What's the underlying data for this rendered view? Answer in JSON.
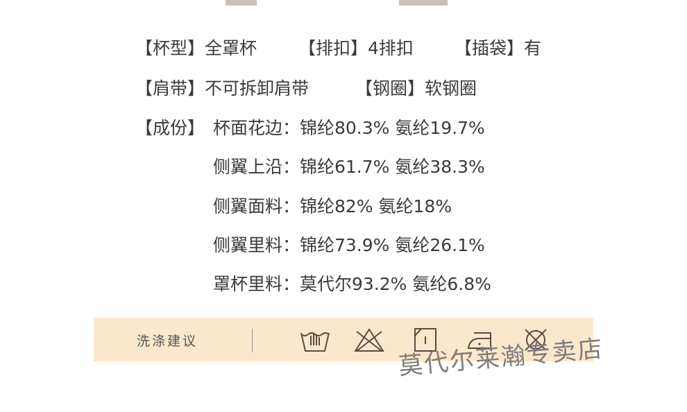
{
  "specs": {
    "row1": [
      {
        "label": "【杯型】",
        "value": "全罩杯"
      },
      {
        "label": "【排扣】",
        "value": "4排扣"
      },
      {
        "label": "【插袋】",
        "value": "有"
      }
    ],
    "row2": [
      {
        "label": "【肩带】",
        "value": "不可拆卸肩带"
      },
      {
        "label": "【钢圈】",
        "value": "软钢圈"
      }
    ],
    "composition": {
      "label": "【成份】",
      "items": [
        "杯面花边：锦纶80.3%  氨纶19.7%",
        "侧翼上沿：锦纶61.7%  氨纶38.3%",
        "侧翼面料：锦纶82%  氨纶18%",
        "侧翼里料：锦纶73.9%  氨纶26.1%",
        "罩杯里料：莫代尔93.2%  氨纶6.8%"
      ]
    }
  },
  "care": {
    "label": "洗涤建议",
    "icons": [
      "hand-wash-icon",
      "no-bleach-icon",
      "line-dry-icon",
      "low-iron-icon",
      "no-dry-clean-icon"
    ],
    "background": "#fbe8cc"
  },
  "watermark": "莫代尔莱瀚专卖店"
}
